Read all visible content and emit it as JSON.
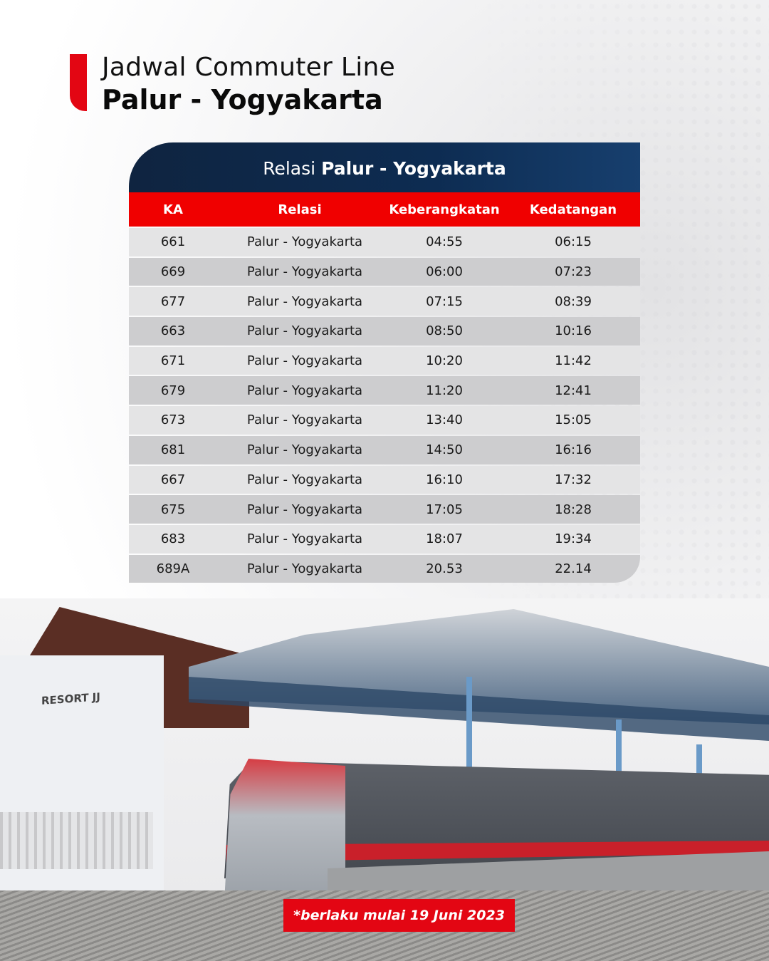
{
  "header": {
    "title_line1": "Jadwal Commuter Line",
    "title_line2": "Palur - Yogyakarta"
  },
  "table": {
    "title_prefix": "Relasi",
    "title_route": "Palur - Yogyakarta",
    "columns": [
      "KA",
      "Relasi",
      "Keberangkatan",
      "Kedatangan"
    ],
    "rows": [
      [
        "661",
        "Palur - Yogyakarta",
        "04:55",
        "06:15"
      ],
      [
        "669",
        "Palur - Yogyakarta",
        "06:00",
        "07:23"
      ],
      [
        "677",
        "Palur - Yogyakarta",
        "07:15",
        "08:39"
      ],
      [
        "663",
        "Palur - Yogyakarta",
        "08:50",
        "10:16"
      ],
      [
        "671",
        "Palur - Yogyakarta",
        "10:20",
        "11:42"
      ],
      [
        "679",
        "Palur - Yogyakarta",
        "11:20",
        "12:41"
      ],
      [
        "673",
        "Palur - Yogyakarta",
        "13:40",
        "15:05"
      ],
      [
        "681",
        "Palur - Yogyakarta",
        "14:50",
        "16:16"
      ],
      [
        "667",
        "Palur - Yogyakarta",
        "16:10",
        "17:32"
      ],
      [
        "675",
        "Palur - Yogyakarta",
        "17:05",
        "18:28"
      ],
      [
        "683",
        "Palur - Yogyakarta",
        "18:07",
        "19:34"
      ],
      [
        "689A",
        "Palur - Yogyakarta",
        "20.53",
        "22.14"
      ]
    ]
  },
  "photo": {
    "station_sign": "RESORT JJ"
  },
  "footnote": "*berlaku mulai 19 Juni 2023",
  "colors": {
    "accent_red": "#e30613",
    "header_navy": "#0d2c52",
    "column_header_red": "#f00000"
  }
}
